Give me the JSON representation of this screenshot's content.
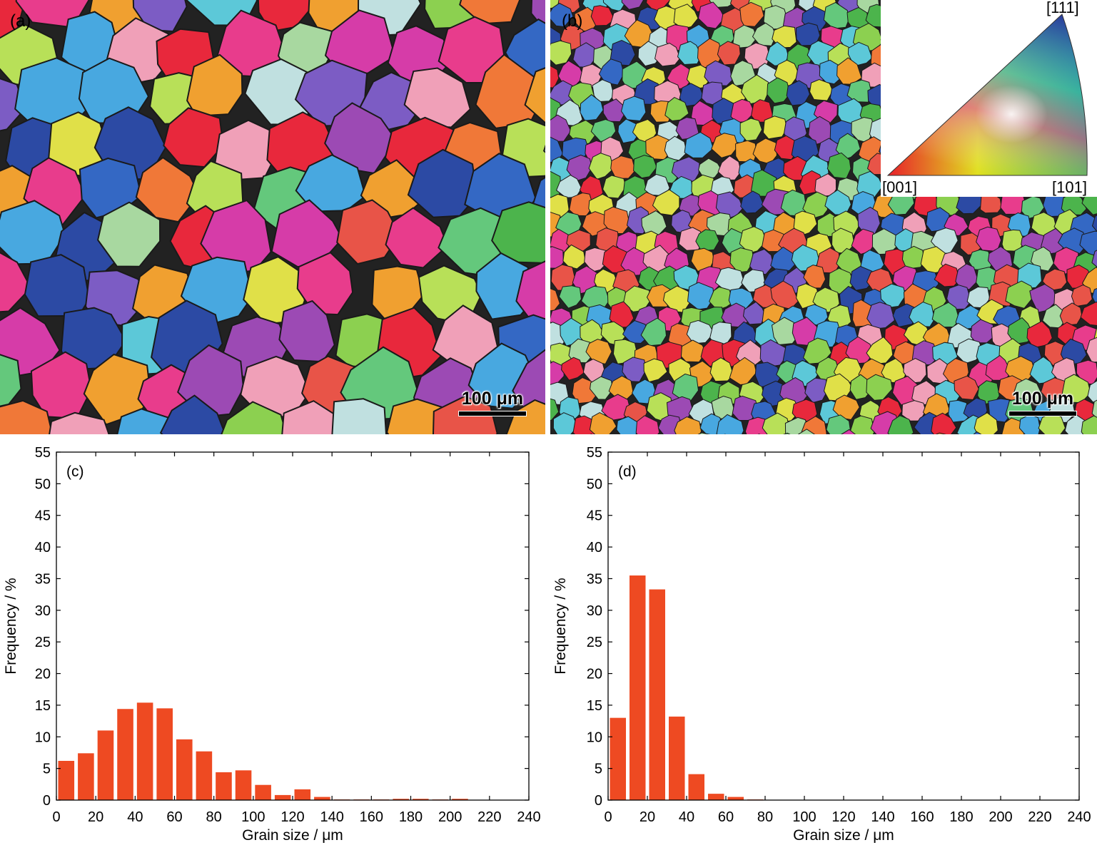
{
  "micrographs": [
    {
      "id": "a",
      "label": "(a)",
      "scale_bar": "100 μm"
    },
    {
      "id": "b",
      "label": "(b)",
      "scale_bar": "100 μm"
    }
  ],
  "ipf_key": {
    "labels": {
      "top": "[111]",
      "left": "[001]",
      "right": "[101]"
    },
    "colors": {
      "001": "#e8202a",
      "101": "#3cb43c",
      "111": "#2a3c9c"
    }
  },
  "chart_data": [
    {
      "type": "bar",
      "panel_label": "(c)",
      "xlabel": "Grain size / μm",
      "ylabel": "Frequency / %",
      "xlim": [
        0,
        240
      ],
      "ylim": [
        0,
        55
      ],
      "xticks": [
        0,
        20,
        40,
        60,
        80,
        100,
        120,
        140,
        160,
        180,
        200,
        220,
        240
      ],
      "yticks": [
        0,
        5,
        10,
        15,
        20,
        25,
        30,
        35,
        40,
        45,
        50,
        55
      ],
      "bin_width": 10,
      "bins": [
        0,
        10,
        20,
        30,
        40,
        50,
        60,
        70,
        80,
        90,
        100,
        110,
        120,
        130,
        140,
        150,
        160,
        170,
        180,
        190,
        200,
        210,
        220,
        230
      ],
      "values": [
        6.2,
        7.4,
        11.0,
        14.4,
        15.4,
        14.5,
        9.6,
        7.7,
        4.4,
        4.7,
        2.4,
        0.8,
        1.7,
        0.5,
        0.1,
        0.1,
        0.1,
        0.2,
        0.2,
        0.1,
        0.2,
        0.0,
        0.0,
        0.0
      ],
      "bar_color": "#ee4a22"
    },
    {
      "type": "bar",
      "panel_label": "(d)",
      "xlabel": "Grain size / μm",
      "ylabel": "Frequency / %",
      "xlim": [
        0,
        240
      ],
      "ylim": [
        0,
        55
      ],
      "xticks": [
        0,
        20,
        40,
        60,
        80,
        100,
        120,
        140,
        160,
        180,
        200,
        220,
        240
      ],
      "yticks": [
        0,
        5,
        10,
        15,
        20,
        25,
        30,
        35,
        40,
        45,
        50,
        55
      ],
      "bin_width": 10,
      "bins": [
        0,
        10,
        20,
        30,
        40,
        50,
        60,
        70,
        80,
        90,
        100,
        110,
        120,
        130,
        140,
        150,
        160,
        170,
        180,
        190,
        200,
        210,
        220,
        230
      ],
      "values": [
        13.0,
        35.5,
        33.3,
        13.2,
        4.1,
        1.0,
        0.5,
        0.1,
        0.0,
        0.0,
        0.0,
        0.0,
        0.0,
        0.0,
        0.0,
        0.0,
        0.0,
        0.0,
        0.0,
        0.0,
        0.0,
        0.0,
        0.0,
        0.0
      ],
      "bar_color": "#ee4a22"
    }
  ]
}
